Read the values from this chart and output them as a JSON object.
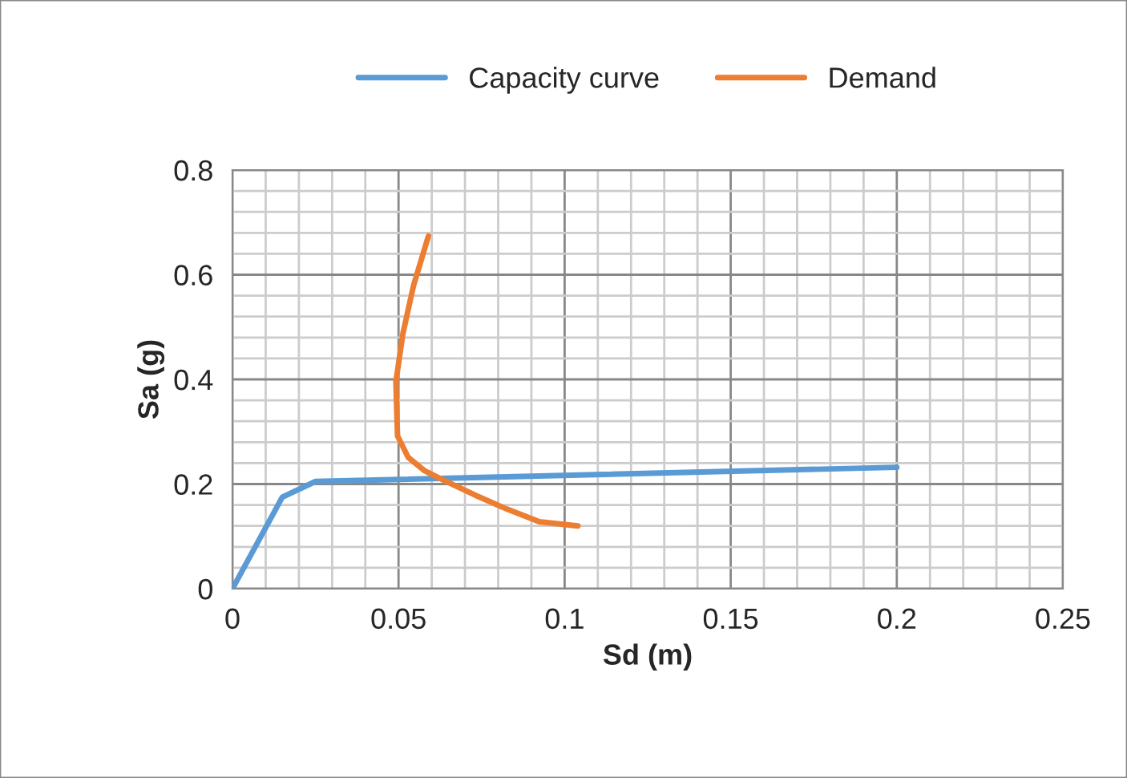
{
  "chart_data": {
    "type": "line",
    "xlabel": "Sd (m)",
    "ylabel": "Sa (g)",
    "series": [
      {
        "name": "Capacity curve",
        "color": "#5b9bd5",
        "x": [
          0,
          0.015,
          0.025,
          0.2
        ],
        "values": [
          0,
          0.175,
          0.205,
          0.232
        ]
      },
      {
        "name": "Demand",
        "color": "#ed7d31",
        "x": [
          0.059,
          0.0545,
          0.0513,
          0.0492,
          0.0497,
          0.0529,
          0.0577,
          0.0634,
          0.073,
          0.0827,
          0.0924,
          0.104
        ],
        "values": [
          0.674,
          0.579,
          0.487,
          0.395,
          0.292,
          0.251,
          0.226,
          0.208,
          0.179,
          0.152,
          0.128,
          0.12
        ]
      }
    ],
    "xlim": [
      0,
      0.25
    ],
    "xticks": [
      0,
      0.05,
      0.1,
      0.15,
      0.2,
      0.25
    ],
    "ylim": [
      0,
      0.8
    ],
    "yticks": [
      0,
      0.2,
      0.4,
      0.6,
      0.8
    ],
    "grid": true,
    "legend": "top",
    "marker": "none",
    "line_style": "solid"
  }
}
